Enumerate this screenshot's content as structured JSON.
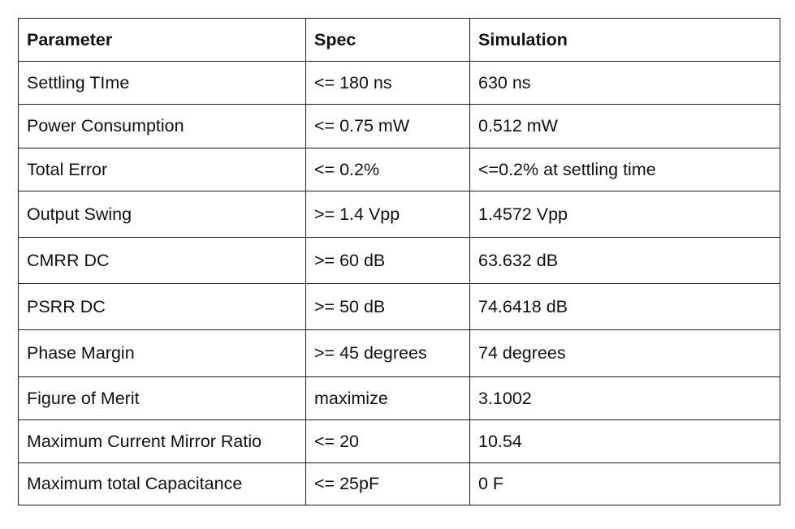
{
  "table": {
    "headers": [
      "Parameter",
      "Spec",
      "Simulation"
    ],
    "rows": [
      [
        "Settling TIme",
        "<= 180 ns",
        "630 ns"
      ],
      [
        "Power Consumption",
        "<= 0.75 mW",
        "0.512 mW"
      ],
      [
        "Total Error",
        "<= 0.2%",
        "<=0.2% at settling time"
      ],
      [
        "Output Swing",
        ">= 1.4 Vpp",
        "1.4572 Vpp"
      ],
      [
        "CMRR DC",
        ">= 60 dB",
        "63.632 dB"
      ],
      [
        "PSRR DC",
        ">= 50 dB",
        "74.6418 dB"
      ],
      [
        "Phase Margin",
        ">= 45 degrees",
        "74 degrees"
      ],
      [
        "Figure of Merit",
        "maximize",
        "3.1002"
      ],
      [
        "Maximum Current Mirror Ratio",
        "<= 20",
        "10.54"
      ],
      [
        "Maximum total Capacitance",
        "<= 25pF",
        "0 F"
      ]
    ]
  }
}
